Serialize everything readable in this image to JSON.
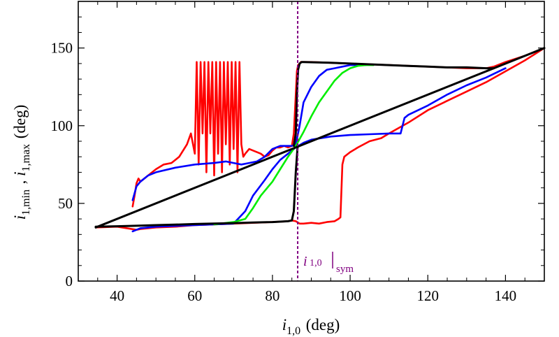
{
  "chart_data": {
    "type": "line",
    "title": "",
    "xlabel": {
      "base": "i",
      "sub": "1,0",
      "unit": " (deg)"
    },
    "ylabel": {
      "base1": "i",
      "sub1": "1,min",
      "sep": " , ",
      "base2": "i",
      "sub2": "1,max",
      "unit": " (deg)"
    },
    "xlim": [
      30,
      150
    ],
    "ylim": [
      0,
      180
    ],
    "xticks": [
      40,
      60,
      80,
      100,
      120,
      140
    ],
    "yticks": [
      0,
      50,
      100,
      150
    ],
    "grid": false,
    "annotation": {
      "base": "i",
      "sub": " 1,0",
      "suffix": "sym",
      "x": 86.5,
      "color": "#800080"
    },
    "series": [
      {
        "name": "diagonal",
        "color": "#000000",
        "x": [
          34.5,
          150
        ],
        "y": [
          34.5,
          150
        ]
      },
      {
        "name": "red-max",
        "color": "#ff0000",
        "x": [
          44,
          44.5,
          45,
          45.5,
          46,
          48,
          50,
          52,
          54,
          56,
          58,
          59,
          60,
          60.5,
          61,
          61.5,
          62,
          62.5,
          63,
          63.5,
          64,
          64.5,
          65,
          65.5,
          66,
          66.5,
          67,
          67.5,
          68,
          68.5,
          69,
          69.5,
          70,
          70.5,
          71,
          71.5,
          72,
          72.5,
          73,
          74,
          75,
          76,
          77,
          78,
          79,
          80,
          81,
          82,
          83,
          84,
          85,
          85.5,
          86,
          86.3,
          86.6,
          87,
          87.3,
          87.6,
          88,
          90,
          95,
          100,
          105,
          110,
          115,
          120,
          125,
          130,
          135,
          137,
          140,
          145,
          150
        ],
        "y": [
          48,
          55,
          63,
          66,
          64,
          68,
          72,
          75,
          76,
          80,
          88,
          95,
          82,
          141,
          75,
          141,
          95,
          141,
          70,
          141,
          95,
          141,
          68,
          141,
          82,
          141,
          70,
          141,
          88,
          141,
          75,
          141,
          85,
          141,
          70,
          141,
          88,
          80,
          82,
          85,
          84,
          83,
          82,
          80,
          81,
          84,
          86,
          86,
          87,
          86,
          87,
          95,
          120,
          135,
          139,
          140,
          141,
          141,
          141,
          141,
          140.5,
          140,
          139.5,
          139,
          138.5,
          138,
          137.5,
          137,
          137,
          138,
          141,
          145,
          150
        ]
      },
      {
        "name": "red-min",
        "color": "#ff0000",
        "x": [
          34.5,
          40,
          45,
          46,
          48,
          50,
          55,
          60,
          65,
          70,
          75,
          80,
          84,
          85,
          86,
          87,
          88,
          90,
          92,
          94,
          96,
          97,
          97.5,
          98,
          98.5,
          99,
          100,
          102,
          105,
          108,
          110,
          115,
          120,
          125,
          130,
          135,
          140,
          145,
          150
        ],
        "y": [
          34.5,
          35,
          33,
          33.5,
          34,
          34.5,
          35,
          36,
          36.5,
          37,
          37.5,
          38,
          38.5,
          39,
          38.5,
          37,
          37,
          37.5,
          37,
          38,
          38.5,
          40,
          41,
          75,
          80,
          81,
          83,
          86,
          90,
          92,
          95,
          102,
          110,
          116,
          122,
          128,
          135,
          142,
          150
        ]
      },
      {
        "name": "blue-max",
        "color": "#0000ff",
        "x": [
          44,
          45,
          46,
          48,
          50,
          55,
          60,
          65,
          68,
          70,
          72,
          74,
          76,
          78,
          80,
          82,
          84,
          85,
          86,
          87,
          88,
          90,
          92,
          94,
          96,
          98,
          100,
          102,
          104
        ],
        "y": [
          52,
          61,
          64,
          68,
          70,
          73,
          75,
          76,
          77,
          76,
          75,
          76,
          77,
          80,
          85,
          87,
          87,
          87,
          88,
          100,
          115,
          125,
          132,
          136,
          137,
          138,
          139,
          139,
          139
        ]
      },
      {
        "name": "blue-min",
        "color": "#0000ff",
        "x": [
          44,
          46,
          48,
          50,
          55,
          60,
          65,
          70,
          73,
          75,
          78,
          80,
          82,
          84,
          85,
          86,
          87,
          88,
          90,
          95,
          100,
          105,
          110,
          113,
          114,
          115,
          120,
          125,
          130,
          135,
          140
        ],
        "y": [
          32,
          34,
          34.5,
          35,
          35.5,
          36,
          36.5,
          37,
          45,
          55,
          65,
          72,
          78,
          82,
          84,
          86,
          87.5,
          89,
          91,
          93,
          94,
          94.5,
          95,
          95,
          105,
          107,
          113,
          120,
          126,
          131,
          137
        ]
      },
      {
        "name": "green-max",
        "color": "#00ee00",
        "x": [
          86,
          88,
          90,
          92,
          94,
          96,
          98,
          100,
          102,
          104,
          106
        ],
        "y": [
          87,
          96,
          106,
          115,
          122,
          129,
          134,
          137,
          138.5,
          139,
          139
        ]
      },
      {
        "name": "green-min",
        "color": "#00ee00",
        "x": [
          65,
          70,
          73,
          75,
          77,
          80,
          82,
          84,
          86
        ],
        "y": [
          36.5,
          38,
          40,
          47,
          55,
          64,
          72,
          80,
          87
        ]
      },
      {
        "name": "black-max",
        "color": "#000000",
        "x": [
          85.5,
          86,
          86.3,
          86.6,
          87,
          87.5,
          88,
          95,
          100,
          105,
          110,
          115,
          120,
          125,
          130,
          135,
          137
        ],
        "y": [
          87,
          95,
          120,
          136,
          140,
          141,
          141,
          140.5,
          140,
          139.5,
          139,
          138.5,
          138,
          137.5,
          137.5,
          137,
          137
        ]
      },
      {
        "name": "black-min",
        "color": "#000000",
        "x": [
          34.5,
          40,
          45,
          50,
          55,
          60,
          65,
          70,
          75,
          80,
          84,
          85,
          85.5,
          86,
          86.5
        ],
        "y": [
          35,
          35.3,
          35.6,
          36,
          36.3,
          36.7,
          37,
          37.3,
          37.7,
          38,
          38.5,
          39,
          45,
          70,
          87
        ]
      }
    ]
  }
}
